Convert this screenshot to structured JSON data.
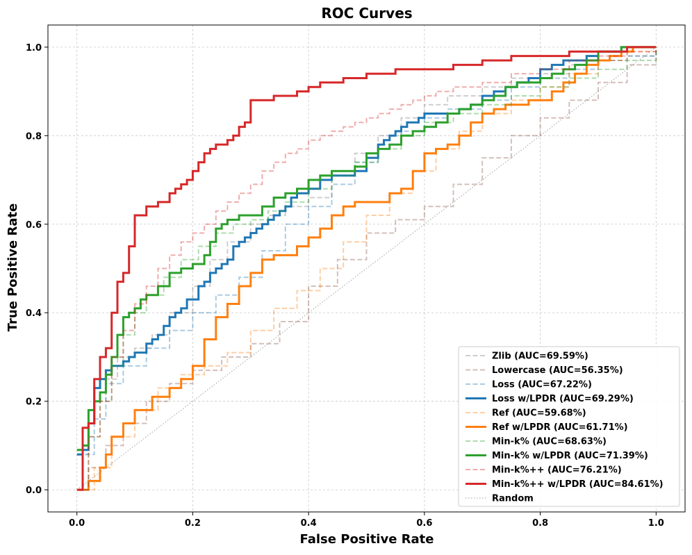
{
  "chart_data": {
    "type": "line",
    "title": "ROC Curves",
    "xlabel": "False Positive Rate",
    "ylabel": "True Positive Rate",
    "xlim": [
      -0.05,
      1.05
    ],
    "ylim": [
      -0.05,
      1.05
    ],
    "xticks": [
      0.0,
      0.2,
      0.4,
      0.6,
      0.8,
      1.0
    ],
    "yticks": [
      0.0,
      0.2,
      0.4,
      0.6,
      0.8,
      1.0
    ],
    "xtick_labels": [
      "0.0",
      "0.2",
      "0.4",
      "0.6",
      "0.8",
      "1.0"
    ],
    "ytick_labels": [
      "0.0",
      "0.2",
      "0.4",
      "0.6",
      "0.8",
      "1.0"
    ],
    "grid": true,
    "legend_position": "lower-right",
    "series": [
      {
        "name": "Zlib (AUC=69.59%)",
        "color": "#7f7f7f",
        "style": "dashed",
        "faded": true,
        "x": [
          0.0,
          0.01,
          0.02,
          0.03,
          0.05,
          0.07,
          0.1,
          0.13,
          0.16,
          0.2,
          0.23,
          0.26,
          0.3,
          0.33,
          0.36,
          0.4,
          0.44,
          0.48,
          0.52,
          0.56,
          0.6,
          0.64,
          0.7,
          0.75,
          0.8,
          0.85,
          0.9,
          0.95,
          1.0
        ],
        "y": [
          0.0,
          0.08,
          0.15,
          0.2,
          0.25,
          0.3,
          0.32,
          0.35,
          0.4,
          0.46,
          0.52,
          0.56,
          0.6,
          0.62,
          0.64,
          0.66,
          0.72,
          0.76,
          0.8,
          0.84,
          0.87,
          0.89,
          0.91,
          0.93,
          0.94,
          0.96,
          0.97,
          0.98,
          1.0
        ]
      },
      {
        "name": "Lowercase (AUC=56.35%)",
        "color": "#8c564b",
        "style": "dashed",
        "faded": true,
        "x": [
          0.0,
          0.02,
          0.05,
          0.08,
          0.12,
          0.16,
          0.2,
          0.25,
          0.3,
          0.35,
          0.4,
          0.45,
          0.5,
          0.55,
          0.6,
          0.65,
          0.7,
          0.75,
          0.8,
          0.85,
          0.9,
          0.95,
          1.0
        ],
        "y": [
          0.0,
          0.05,
          0.1,
          0.15,
          0.2,
          0.24,
          0.27,
          0.3,
          0.33,
          0.38,
          0.46,
          0.52,
          0.58,
          0.61,
          0.64,
          0.69,
          0.75,
          0.8,
          0.84,
          0.88,
          0.92,
          0.96,
          1.0
        ]
      },
      {
        "name": "Loss (AUC=67.22%)",
        "color": "#1f77b4",
        "style": "dashed",
        "faded": true,
        "x": [
          0.0,
          0.01,
          0.03,
          0.05,
          0.08,
          0.12,
          0.16,
          0.2,
          0.24,
          0.28,
          0.32,
          0.36,
          0.4,
          0.44,
          0.48,
          0.52,
          0.56,
          0.6,
          0.64,
          0.7,
          0.75,
          0.8,
          0.85,
          0.9,
          0.95,
          1.0
        ],
        "y": [
          0.0,
          0.08,
          0.16,
          0.24,
          0.28,
          0.32,
          0.36,
          0.4,
          0.44,
          0.48,
          0.54,
          0.6,
          0.64,
          0.69,
          0.74,
          0.78,
          0.81,
          0.84,
          0.86,
          0.88,
          0.91,
          0.93,
          0.95,
          0.97,
          0.98,
          1.0
        ]
      },
      {
        "name": "Loss w/LPDR (AUC=69.29%)",
        "color": "#1f77b4",
        "style": "solid",
        "faded": false,
        "x": [
          0.0,
          0.01,
          0.02,
          0.03,
          0.04,
          0.05,
          0.06,
          0.08,
          0.09,
          0.1,
          0.11,
          0.12,
          0.13,
          0.14,
          0.15,
          0.16,
          0.17,
          0.18,
          0.19,
          0.2,
          0.21,
          0.22,
          0.23,
          0.24,
          0.25,
          0.26,
          0.27,
          0.28,
          0.29,
          0.3,
          0.31,
          0.32,
          0.33,
          0.34,
          0.35,
          0.36,
          0.37,
          0.38,
          0.4,
          0.42,
          0.44,
          0.46,
          0.48,
          0.5,
          0.52,
          0.53,
          0.54,
          0.55,
          0.56,
          0.57,
          0.58,
          0.59,
          0.6,
          0.62,
          0.64,
          0.66,
          0.68,
          0.7,
          0.72,
          0.74,
          0.76,
          0.78,
          0.8,
          0.82,
          0.84,
          0.86,
          0.88,
          0.9,
          0.92,
          0.94,
          1.0
        ],
        "y": [
          0.08,
          0.09,
          0.15,
          0.23,
          0.25,
          0.27,
          0.28,
          0.29,
          0.3,
          0.31,
          0.31,
          0.33,
          0.34,
          0.35,
          0.37,
          0.39,
          0.4,
          0.41,
          0.43,
          0.43,
          0.46,
          0.47,
          0.49,
          0.5,
          0.51,
          0.52,
          0.55,
          0.56,
          0.57,
          0.58,
          0.59,
          0.6,
          0.61,
          0.62,
          0.63,
          0.64,
          0.66,
          0.67,
          0.68,
          0.7,
          0.71,
          0.71,
          0.72,
          0.75,
          0.78,
          0.79,
          0.8,
          0.81,
          0.82,
          0.83,
          0.83,
          0.84,
          0.85,
          0.85,
          0.85,
          0.86,
          0.87,
          0.89,
          0.9,
          0.91,
          0.92,
          0.93,
          0.95,
          0.96,
          0.97,
          0.97,
          0.98,
          0.99,
          0.99,
          1.0,
          1.0
        ]
      },
      {
        "name": "Ref (AUC=59.68%)",
        "color": "#ff7f0e",
        "style": "dashed",
        "faded": true,
        "x": [
          0.0,
          0.03,
          0.06,
          0.1,
          0.14,
          0.18,
          0.22,
          0.26,
          0.3,
          0.34,
          0.38,
          0.42,
          0.46,
          0.5,
          0.54,
          0.58,
          0.62,
          0.66,
          0.7,
          0.75,
          0.8,
          0.85,
          0.9,
          0.95,
          1.0
        ],
        "y": [
          0.0,
          0.05,
          0.12,
          0.18,
          0.23,
          0.26,
          0.28,
          0.31,
          0.36,
          0.41,
          0.45,
          0.5,
          0.56,
          0.62,
          0.67,
          0.72,
          0.77,
          0.81,
          0.85,
          0.88,
          0.91,
          0.94,
          0.97,
          0.99,
          1.0
        ]
      },
      {
        "name": "Ref w/LPDR (AUC=61.71%)",
        "color": "#ff7f0e",
        "style": "solid",
        "faded": false,
        "x": [
          0.0,
          0.02,
          0.04,
          0.05,
          0.06,
          0.08,
          0.1,
          0.13,
          0.16,
          0.18,
          0.2,
          0.22,
          0.24,
          0.26,
          0.28,
          0.3,
          0.32,
          0.34,
          0.36,
          0.38,
          0.4,
          0.42,
          0.44,
          0.46,
          0.48,
          0.5,
          0.52,
          0.54,
          0.56,
          0.58,
          0.6,
          0.62,
          0.64,
          0.66,
          0.68,
          0.7,
          0.72,
          0.74,
          0.76,
          0.78,
          0.8,
          0.82,
          0.84,
          0.86,
          0.88,
          0.9,
          0.92,
          0.94,
          0.96,
          0.98,
          1.0
        ],
        "y": [
          0.0,
          0.02,
          0.05,
          0.08,
          0.12,
          0.15,
          0.18,
          0.21,
          0.23,
          0.25,
          0.28,
          0.34,
          0.39,
          0.42,
          0.46,
          0.49,
          0.52,
          0.53,
          0.53,
          0.55,
          0.57,
          0.59,
          0.62,
          0.64,
          0.65,
          0.65,
          0.65,
          0.67,
          0.68,
          0.72,
          0.76,
          0.77,
          0.78,
          0.8,
          0.83,
          0.85,
          0.86,
          0.87,
          0.87,
          0.88,
          0.88,
          0.9,
          0.92,
          0.94,
          0.96,
          0.97,
          0.98,
          0.99,
          1.0,
          1.0,
          1.0
        ]
      },
      {
        "name": "Min-k% (AUC=68.63%)",
        "color": "#2ca02c",
        "style": "dashed",
        "faded": true,
        "x": [
          0.0,
          0.02,
          0.04,
          0.06,
          0.08,
          0.1,
          0.12,
          0.15,
          0.18,
          0.21,
          0.24,
          0.27,
          0.3,
          0.33,
          0.36,
          0.4,
          0.44,
          0.48,
          0.52,
          0.56,
          0.6,
          0.65,
          0.7,
          0.75,
          0.8,
          0.85,
          0.9,
          0.95,
          1.0
        ],
        "y": [
          0.0,
          0.12,
          0.2,
          0.28,
          0.35,
          0.4,
          0.44,
          0.48,
          0.52,
          0.55,
          0.58,
          0.6,
          0.61,
          0.63,
          0.65,
          0.68,
          0.71,
          0.74,
          0.77,
          0.8,
          0.83,
          0.85,
          0.87,
          0.89,
          0.91,
          0.93,
          0.95,
          0.97,
          1.0
        ]
      },
      {
        "name": "Min-k% w/LPDR (AUC=71.39%)",
        "color": "#2ca02c",
        "style": "solid",
        "faded": false,
        "x": [
          0.0,
          0.01,
          0.02,
          0.03,
          0.04,
          0.05,
          0.06,
          0.07,
          0.08,
          0.09,
          0.1,
          0.11,
          0.12,
          0.14,
          0.16,
          0.18,
          0.2,
          0.22,
          0.23,
          0.24,
          0.25,
          0.26,
          0.28,
          0.3,
          0.32,
          0.34,
          0.36,
          0.38,
          0.4,
          0.42,
          0.44,
          0.46,
          0.48,
          0.5,
          0.52,
          0.54,
          0.56,
          0.58,
          0.6,
          0.62,
          0.64,
          0.66,
          0.68,
          0.7,
          0.72,
          0.74,
          0.76,
          0.78,
          0.8,
          0.82,
          0.84,
          0.86,
          0.88,
          0.9,
          0.92,
          0.94,
          0.96,
          1.0
        ],
        "y": [
          0.09,
          0.1,
          0.18,
          0.2,
          0.22,
          0.26,
          0.3,
          0.35,
          0.39,
          0.4,
          0.41,
          0.43,
          0.44,
          0.46,
          0.49,
          0.5,
          0.51,
          0.53,
          0.56,
          0.59,
          0.6,
          0.61,
          0.62,
          0.62,
          0.64,
          0.66,
          0.67,
          0.68,
          0.7,
          0.71,
          0.72,
          0.72,
          0.73,
          0.76,
          0.77,
          0.78,
          0.8,
          0.81,
          0.82,
          0.83,
          0.85,
          0.86,
          0.87,
          0.88,
          0.89,
          0.91,
          0.92,
          0.92,
          0.93,
          0.94,
          0.95,
          0.96,
          0.97,
          0.99,
          0.99,
          1.0,
          1.0,
          1.0
        ]
      },
      {
        "name": "Min-k%++ (AUC=76.21%)",
        "color": "#d62728",
        "style": "dashed",
        "faded": true,
        "x": [
          0.0,
          0.02,
          0.04,
          0.06,
          0.08,
          0.1,
          0.12,
          0.14,
          0.16,
          0.18,
          0.2,
          0.22,
          0.24,
          0.26,
          0.28,
          0.3,
          0.32,
          0.34,
          0.36,
          0.38,
          0.4,
          0.42,
          0.44,
          0.46,
          0.48,
          0.5,
          0.52,
          0.54,
          0.56,
          0.58,
          0.6,
          0.62,
          0.65,
          0.7,
          0.75,
          0.8,
          0.85,
          0.9,
          0.95,
          1.0
        ],
        "y": [
          0.0,
          0.12,
          0.2,
          0.3,
          0.36,
          0.42,
          0.46,
          0.5,
          0.53,
          0.56,
          0.58,
          0.6,
          0.63,
          0.65,
          0.67,
          0.69,
          0.72,
          0.74,
          0.76,
          0.77,
          0.79,
          0.8,
          0.81,
          0.82,
          0.83,
          0.84,
          0.85,
          0.86,
          0.87,
          0.88,
          0.89,
          0.9,
          0.91,
          0.92,
          0.94,
          0.95,
          0.97,
          0.98,
          0.99,
          1.0
        ]
      },
      {
        "name": "Min-k%++ w/LPDR (AUC=84.61%)",
        "color": "#d62728",
        "style": "solid",
        "faded": false,
        "x": [
          0.0,
          0.01,
          0.02,
          0.03,
          0.04,
          0.05,
          0.06,
          0.07,
          0.08,
          0.09,
          0.1,
          0.11,
          0.12,
          0.14,
          0.15,
          0.16,
          0.17,
          0.18,
          0.19,
          0.2,
          0.21,
          0.22,
          0.23,
          0.24,
          0.25,
          0.26,
          0.27,
          0.28,
          0.29,
          0.3,
          0.32,
          0.34,
          0.36,
          0.38,
          0.4,
          0.42,
          0.44,
          0.46,
          0.48,
          0.5,
          0.55,
          0.6,
          0.65,
          0.7,
          0.75,
          0.8,
          0.85,
          0.9,
          0.95,
          1.0
        ],
        "y": [
          0.0,
          0.14,
          0.15,
          0.25,
          0.3,
          0.32,
          0.4,
          0.47,
          0.49,
          0.55,
          0.62,
          0.62,
          0.64,
          0.65,
          0.65,
          0.67,
          0.68,
          0.69,
          0.7,
          0.72,
          0.74,
          0.76,
          0.77,
          0.78,
          0.78,
          0.79,
          0.8,
          0.82,
          0.83,
          0.88,
          0.88,
          0.89,
          0.89,
          0.9,
          0.91,
          0.92,
          0.92,
          0.93,
          0.93,
          0.94,
          0.95,
          0.95,
          0.96,
          0.97,
          0.98,
          0.98,
          0.99,
          0.99,
          1.0,
          1.0
        ]
      },
      {
        "name": "Random",
        "color": "#7f7f7f",
        "style": "dotted",
        "faded": false,
        "x": [
          0.0,
          1.0
        ],
        "y": [
          0.0,
          1.0
        ]
      }
    ]
  }
}
